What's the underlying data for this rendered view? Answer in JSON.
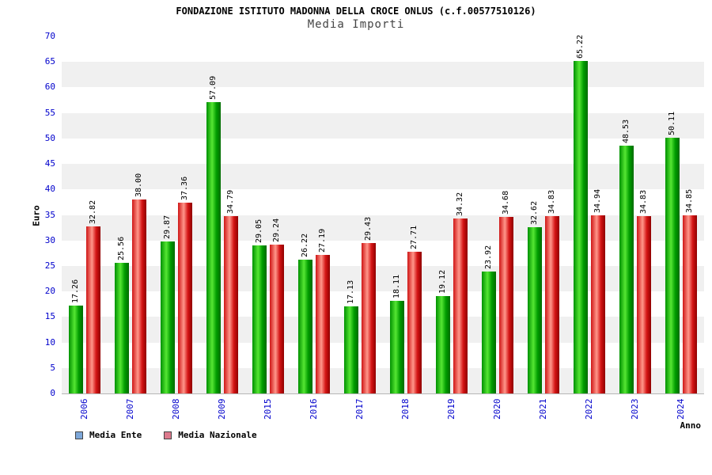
{
  "chart_data": {
    "type": "bar",
    "title": "FONDAZIONE ISTITUTO MADONNA DELLA CROCE ONLUS (c.f.00577510126)",
    "subtitle": "Media Importi",
    "xlabel": "Anno",
    "ylabel": "Euro",
    "ylim": [
      0,
      70
    ],
    "ytick_step": 5,
    "grid": "alternating horizontal gray bands every 5 units",
    "legend_position": "bottom-left",
    "axis_text_color": "#0000cc",
    "band_gray": "#f0f0f0",
    "categories": [
      "2006",
      "2007",
      "2008",
      "2009",
      "2015",
      "2016",
      "2017",
      "2018",
      "2019",
      "2020",
      "2021",
      "2022",
      "2023",
      "2024"
    ],
    "series": [
      {
        "name": "Media Ente",
        "swatch": "#7da7d9",
        "gradient": [
          "#009100",
          "#55e633",
          "#009c00",
          "#006b00"
        ],
        "values": [
          17.26,
          25.56,
          29.87,
          57.09,
          29.05,
          26.22,
          17.13,
          18.11,
          19.12,
          23.92,
          32.62,
          65.22,
          48.53,
          50.11
        ],
        "labels": [
          "17.26",
          "25.56",
          "29.87",
          "57.09",
          "29.05",
          "26.22",
          "17.13",
          "18.11",
          "19.12",
          "23.92",
          "32.62",
          "65.22",
          "48.53",
          "50.11"
        ]
      },
      {
        "name": "Media Nazionale",
        "swatch": "#dd7a8d",
        "gradient": [
          "#cf1616",
          "#ff968a",
          "#d41414",
          "#8f0000"
        ],
        "values": [
          32.82,
          38.0,
          37.36,
          34.79,
          29.24,
          27.19,
          29.43,
          27.71,
          34.32,
          34.68,
          34.83,
          34.94,
          34.83,
          34.85
        ],
        "labels": [
          "32.82",
          "38.00",
          "37.36",
          "34.79",
          "29.24",
          "27.19",
          "29.43",
          "27.71",
          "34.32",
          "34.68",
          "34.83",
          "34.94",
          "34.83",
          "34.85"
        ]
      }
    ]
  }
}
